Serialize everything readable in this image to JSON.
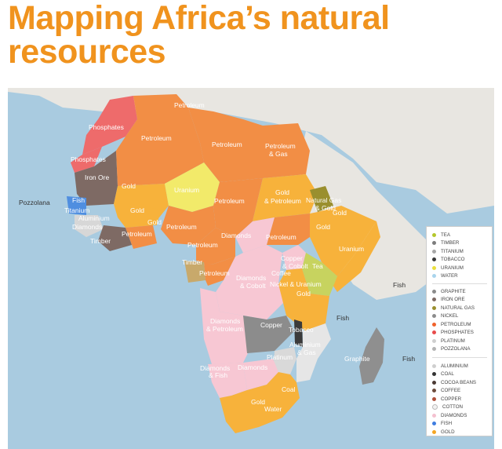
{
  "title_line1": "Mapping Africa’s natural",
  "title_line2": "resources",
  "colors": {
    "ocean": "#a9cbe0",
    "land_other": "#e8e6e1",
    "petroleum": "#f28e45",
    "gold": "#f7b23b",
    "diamonds": "#f7c7d3",
    "phosphates": "#ee6b6b",
    "iron_ore": "#7e6a64",
    "uranium": "#f2ea6a",
    "tea": "#c7d35f",
    "copper": "#8c8c8c",
    "graphite": "#8f8f8f",
    "fish": "#4f8ee0"
  },
  "map_labels": {
    "phosphates_1": "Phosphates",
    "phosphates_2": "Phosphates",
    "iron_ore": "Iron Ore",
    "petroleum_algeria": "Petroleum",
    "petroleum_tunisia": "Petroleum",
    "petroleum_libya": "Petroleum",
    "petroleum_egypt_1": "Petroleum",
    "petroleum_egypt_2": "& Gas",
    "gold_mali": "Gold",
    "uranium_niger": "Uranium",
    "petroleum_chad": "Petroleum",
    "gold_sudan_1": "Gold",
    "gold_sudan_2": "& Petroleum",
    "natural_gas_1": "Natural Gas",
    "natural_gas_2": "& Gold",
    "gold_ethiopia": "Gold",
    "pozzolana": "Pozzolana",
    "fish_senegal": "Fish",
    "titanium": "Titanium",
    "aluminium_guinea": "Aluminium",
    "diamonds_sierra": "Diamonds",
    "timber_liberia": "Timber",
    "gold_burkina": "Gold",
    "gold_ghana": "Gold",
    "petroleum_nigeria": "Petroleum",
    "petroleum_benin": "Petroleum",
    "petroleum_cameroon": "Petroleum",
    "diamonds_car": "Diamonds",
    "petroleum_ssudan": "Petroleum",
    "uranium_somalia": "Uranium",
    "timber_gabon": "Timber",
    "petroleum_congo": "Petroleum",
    "copper_cobolt_1": "Copper",
    "copper_cobolt_2": "& Cobolt",
    "tea_kenya": "Tea",
    "coffee_uganda": "Coffee",
    "diamonds_cobolt_1": "Diamonds",
    "diamonds_cobolt_2": "& Cobolt",
    "nickel_uranium": "Nickel & Uranium",
    "gold_tanzania": "Gold",
    "fish_seychelles": "Fish",
    "fish_ocean": "Fish",
    "diamonds_angola_1": "Diamonds",
    "diamonds_angola_2": "& Petroleum",
    "copper_zambia": "Copper",
    "tobacco": "Tobacco",
    "aluminium_moz_1": "Aluminium",
    "aluminium_moz_2": "& Gas",
    "graphite": "Graphite",
    "fish_mauritius": "Fish",
    "platinum": "Platinum",
    "diamonds_fish_1": "Diamonds",
    "diamonds_fish_2": "& Fish",
    "diamonds_botswana": "Diamonds",
    "coal": "Coal",
    "gold_sa": "Gold",
    "water": "Water"
  },
  "legend": {
    "group1": [
      {
        "label": "Tea",
        "color": "#b4c72c"
      },
      {
        "label": "Timber",
        "color": "#7c7c7c"
      },
      {
        "label": "Titanium",
        "color": "#a7a7a7"
      },
      {
        "label": "Tobacco",
        "color": "#3a3a3a"
      },
      {
        "label": "Uranium",
        "color": "#eadf3c"
      },
      {
        "label": "Water",
        "color": "#a9d4ec"
      }
    ],
    "group2": [
      {
        "label": "Graphite",
        "color": "#8a8a8a"
      },
      {
        "label": "Iron Ore",
        "color": "#7e6a64"
      },
      {
        "label": "Natural Gas",
        "color": "#9a8f2e"
      },
      {
        "label": "Nickel",
        "color": "#8c8c8c"
      },
      {
        "label": "Petroleum",
        "color": "#f0622c"
      },
      {
        "label": "Phosphates",
        "color": "#e84b4b"
      },
      {
        "label": "Platinum",
        "color": "#cfcfcf"
      },
      {
        "label": "Pozzolana",
        "color": "#b3b3b3"
      }
    ],
    "group3": [
      {
        "label": "Aluminium",
        "color": "#cfcfcf"
      },
      {
        "label": "Coal",
        "color": "#333333"
      },
      {
        "label": "Cocoa Beans",
        "color": "#4a3a34"
      },
      {
        "label": "Coffee",
        "color": "#6b4b3c"
      },
      {
        "label": "Copper",
        "color": "#b0503a"
      },
      {
        "label": "Cotton",
        "color": "#f2f2f2"
      },
      {
        "label": "Diamonds",
        "color": "#f4c1d0"
      },
      {
        "label": "Fish",
        "color": "#3f7de0"
      },
      {
        "label": "Gold",
        "color": "#f5a623"
      }
    ]
  }
}
